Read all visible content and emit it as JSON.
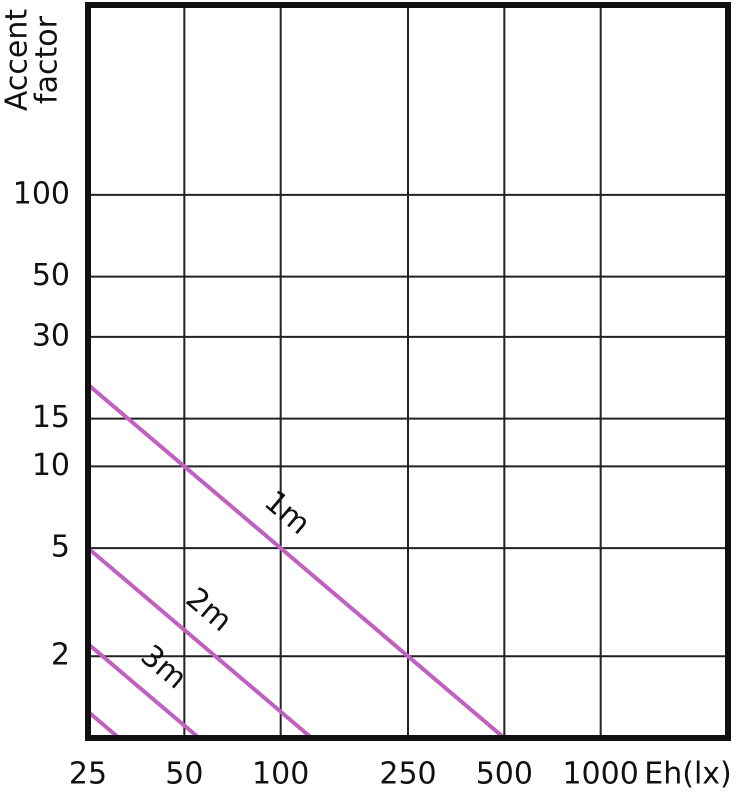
{
  "chart_data": {
    "type": "line",
    "ylabel": [
      "Accent",
      "factor"
    ],
    "xlabel": "Eh(lx)",
    "log_x": true,
    "log_y": true,
    "grid": true,
    "xlim": [
      25,
      2500
    ],
    "xticks": [
      25,
      50,
      100,
      250,
      500,
      1000
    ],
    "ylim": [
      1,
      500
    ],
    "yticks": [
      2,
      5,
      10,
      15,
      30,
      50,
      100
    ],
    "series": [
      {
        "name": "1m",
        "color": "#c060c0",
        "x": [
          25,
          500
        ],
        "values": [
          20,
          1
        ]
      },
      {
        "name": "2m",
        "color": "#c060c0",
        "x": [
          25,
          125
        ],
        "values": [
          5,
          1
        ]
      },
      {
        "name": "3m",
        "color": "#c060c0",
        "x": [
          25,
          55.6
        ],
        "values": [
          2.22,
          1
        ]
      },
      {
        "color": "#c060c0",
        "x": [
          25,
          31.25
        ],
        "values": [
          1.25,
          1
        ]
      }
    ]
  }
}
